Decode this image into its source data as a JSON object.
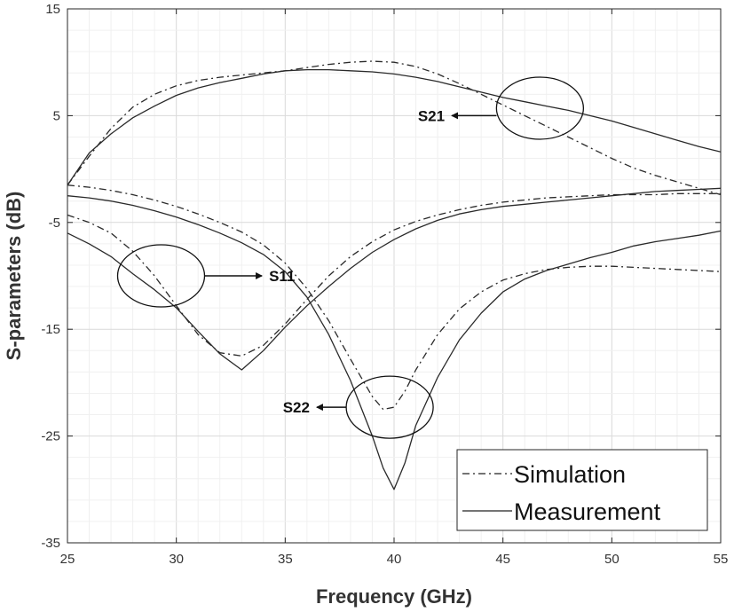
{
  "chart_data": {
    "type": "line",
    "xlabel": "Frequency (GHz)",
    "ylabel": "S-parameters (dB)",
    "xlim": [
      25,
      55
    ],
    "ylim": [
      -35,
      15
    ],
    "x_ticks": [
      25,
      30,
      35,
      40,
      45,
      50,
      55
    ],
    "y_ticks": [
      -35,
      -25,
      -15,
      -5,
      5,
      15
    ],
    "grid": true,
    "legend_position": "bottom-right",
    "legend": [
      "Simulation",
      "Measurement"
    ],
    "series": [
      {
        "curve": "S21",
        "legend": "Simulation",
        "style": "dash-dot",
        "x": [
          25,
          26,
          27,
          28,
          29,
          30,
          31,
          32,
          33,
          34,
          35,
          36,
          37,
          38,
          39,
          40,
          41,
          42,
          43,
          44,
          45,
          46,
          47,
          48,
          49,
          50,
          51,
          52,
          53,
          54,
          55
        ],
        "y": [
          -1.5,
          1.2,
          3.8,
          5.8,
          7.0,
          7.8,
          8.3,
          8.6,
          8.8,
          9.0,
          9.2,
          9.5,
          9.8,
          10.0,
          10.1,
          10.0,
          9.6,
          8.9,
          8.0,
          7.0,
          6.0,
          5.0,
          4.0,
          3.0,
          2.0,
          1.0,
          0.1,
          -0.6,
          -1.2,
          -1.8,
          -2.4
        ]
      },
      {
        "curve": "S21",
        "legend": "Measurement",
        "style": "solid",
        "x": [
          25,
          26,
          27,
          28,
          29,
          30,
          31,
          32,
          33,
          34,
          35,
          36,
          37,
          38,
          39,
          40,
          41,
          42,
          43,
          44,
          45,
          46,
          47,
          48,
          49,
          50,
          51,
          52,
          53,
          54,
          55
        ],
        "y": [
          -1.5,
          1.5,
          3.3,
          4.8,
          5.9,
          6.9,
          7.6,
          8.1,
          8.5,
          8.9,
          9.2,
          9.3,
          9.3,
          9.2,
          9.1,
          8.9,
          8.6,
          8.2,
          7.7,
          7.2,
          6.7,
          6.3,
          5.9,
          5.5,
          5.0,
          4.5,
          3.9,
          3.3,
          2.7,
          2.1,
          1.6
        ]
      },
      {
        "curve": "S11",
        "legend": "Simulation",
        "style": "dash-dot",
        "x": [
          25,
          26,
          27,
          28,
          29,
          30,
          31,
          32,
          33,
          34,
          35,
          36,
          37,
          38,
          39,
          40,
          41,
          42,
          43,
          44,
          45,
          46,
          47,
          48,
          49,
          50,
          51,
          52,
          53,
          54,
          55
        ],
        "y": [
          -4.3,
          -5.0,
          -6.0,
          -7.7,
          -10.0,
          -12.8,
          -15.5,
          -17.2,
          -17.5,
          -16.5,
          -14.5,
          -12.2,
          -10.0,
          -8.2,
          -6.8,
          -5.7,
          -4.9,
          -4.3,
          -3.8,
          -3.4,
          -3.1,
          -2.9,
          -2.7,
          -2.6,
          -2.5,
          -2.4,
          -2.4,
          -2.4,
          -2.3,
          -2.3,
          -2.3
        ]
      },
      {
        "curve": "S11",
        "legend": "Measurement",
        "style": "solid",
        "x": [
          25,
          26,
          27,
          28,
          29,
          30,
          31,
          32,
          33,
          34,
          35,
          36,
          37,
          38,
          39,
          40,
          41,
          42,
          43,
          44,
          45,
          46,
          47,
          48,
          49,
          50,
          51,
          52,
          53,
          54,
          55
        ],
        "y": [
          -6.0,
          -7.0,
          -8.2,
          -9.8,
          -11.3,
          -13.0,
          -15.2,
          -17.3,
          -18.8,
          -17.0,
          -14.8,
          -12.8,
          -11.0,
          -9.3,
          -7.8,
          -6.6,
          -5.6,
          -4.8,
          -4.2,
          -3.8,
          -3.5,
          -3.3,
          -3.1,
          -2.9,
          -2.7,
          -2.5,
          -2.3,
          -2.1,
          -2.0,
          -1.9,
          -1.8
        ]
      },
      {
        "curve": "S22",
        "legend": "Simulation",
        "style": "dash-dot",
        "x": [
          25,
          26,
          27,
          28,
          29,
          30,
          31,
          32,
          33,
          34,
          35,
          36,
          37,
          38,
          39,
          39.5,
          40,
          40.5,
          41,
          42,
          43,
          44,
          45,
          46,
          47,
          48,
          49,
          50,
          51,
          52,
          53,
          54,
          55
        ],
        "y": [
          -1.5,
          -1.7,
          -2.0,
          -2.4,
          -2.9,
          -3.5,
          -4.2,
          -5.0,
          -5.9,
          -7.1,
          -8.8,
          -11.2,
          -14.2,
          -17.8,
          -21.3,
          -22.5,
          -22.3,
          -20.8,
          -18.8,
          -15.5,
          -13.1,
          -11.5,
          -10.4,
          -9.8,
          -9.4,
          -9.2,
          -9.1,
          -9.1,
          -9.2,
          -9.3,
          -9.4,
          -9.5,
          -9.6
        ]
      },
      {
        "curve": "S22",
        "legend": "Measurement",
        "style": "solid",
        "x": [
          25,
          26,
          27,
          28,
          29,
          30,
          31,
          32,
          33,
          34,
          35,
          36,
          37,
          38,
          39,
          39.5,
          40,
          40.5,
          41,
          42,
          43,
          44,
          45,
          46,
          47,
          48,
          49,
          50,
          51,
          52,
          53,
          54,
          55
        ],
        "y": [
          -2.5,
          -2.7,
          -3.0,
          -3.4,
          -3.9,
          -4.5,
          -5.2,
          -6.0,
          -6.9,
          -8.0,
          -9.6,
          -12.0,
          -15.5,
          -19.8,
          -25.0,
          -28.0,
          -30.0,
          -27.5,
          -24.0,
          -19.5,
          -16.0,
          -13.5,
          -11.5,
          -10.3,
          -9.5,
          -8.9,
          -8.3,
          -7.8,
          -7.2,
          -6.8,
          -6.5,
          -6.2,
          -5.8
        ]
      }
    ],
    "annotations": [
      {
        "text": "S21",
        "ellipse_center": [
          46.7,
          5.7
        ],
        "label_at": [
          42.0,
          5.0
        ]
      },
      {
        "text": "S11",
        "ellipse_center": [
          29.3,
          -10.0
        ],
        "label_at": [
          34.5,
          -10.0
        ]
      },
      {
        "text": "S22",
        "ellipse_center": [
          39.8,
          -22.3
        ],
        "label_at": [
          35.8,
          -22.3
        ]
      }
    ]
  }
}
